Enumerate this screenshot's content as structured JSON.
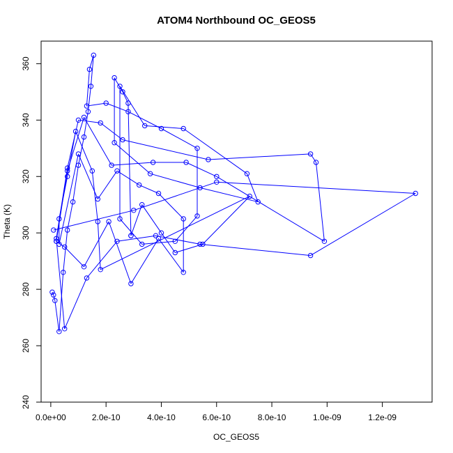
{
  "chart_data": {
    "type": "scatter",
    "title": "ATOM4 Northbound OC_GEOS5",
    "xlabel": "OC_GEOS5",
    "ylabel": "Theta (K)",
    "xlim": [
      -3.5e-11,
      1.38e-09
    ],
    "ylim": [
      240,
      368
    ],
    "x_ticks": [
      0,
      2e-10,
      4e-10,
      6e-10,
      8e-10,
      1e-09,
      1.2e-09
    ],
    "x_tick_labels": [
      "0.0e+00",
      "2.0e-10",
      "4.0e-10",
      "6.0e-10",
      "8.0e-10",
      "1.0e-09",
      "1.2e-09"
    ],
    "y_ticks": [
      240,
      260,
      280,
      300,
      320,
      340,
      360
    ],
    "y_tick_labels": [
      "240",
      "260",
      "280",
      "300",
      "320",
      "340",
      "360"
    ],
    "grid": false,
    "color": "#0000ff",
    "style": "points-connected-by-lines",
    "x": [
      5e-12,
      1e-11,
      1.5e-11,
      3e-11,
      4.5e-11,
      6e-11,
      8e-11,
      1e-10,
      1.2e-10,
      1.35e-10,
      1.45e-10,
      1.55e-10,
      1.4e-10,
      1.3e-10,
      2e-10,
      2.8e-10,
      4e-10,
      5.3e-10,
      5.3e-10,
      4.5e-10,
      3.3e-10,
      2.5e-10,
      2.5e-10,
      3.4e-10,
      4.8e-10,
      7.1e-10,
      7.5e-10,
      5.4e-10,
      3.6e-10,
      2.3e-10,
      2.3e-10,
      2.6e-10,
      2.8e-10,
      2.9e-10,
      2.9e-10,
      3.3e-10,
      4e-10,
      4.5e-10,
      5.5e-10,
      7.2e-10,
      1.8e-10,
      1.7e-10,
      1.5e-10,
      9e-11,
      6e-11,
      3e-11,
      3e-11,
      1e-10,
      1.7e-10,
      2.4e-10,
      3.2e-10,
      3.9e-10,
      4.8e-10,
      4.8e-10,
      3.9e-10,
      2.9e-10,
      2.1e-10,
      1.2e-10,
      5e-11,
      2e-11,
      2e-11,
      6e-11,
      1.2e-10,
      2.2e-10,
      3.7e-10,
      4.9e-10,
      6e-10,
      9.9e-10,
      9.6e-10,
      9.4e-10,
      5.7e-10,
      2.6e-10,
      1.8e-10,
      1e-10,
      6e-11,
      2e-11,
      5e-11,
      1.3e-10,
      2.4e-10,
      3.8e-10,
      5.4e-10,
      9.4e-10,
      1.32e-09,
      6e-10,
      3e-10,
      1e-11
    ],
    "y": [
      279,
      278,
      276,
      265,
      286,
      301,
      311,
      324,
      334,
      343,
      352,
      363,
      358,
      345,
      346,
      343,
      337,
      330,
      306,
      297,
      296,
      305,
      352,
      338,
      337,
      321,
      311,
      316,
      321,
      332,
      355,
      350,
      346,
      299,
      299,
      310,
      300,
      293,
      296,
      313,
      287,
      304,
      322,
      336,
      320,
      305,
      296,
      328,
      312,
      322,
      317,
      314,
      305,
      286,
      298,
      282,
      304,
      288,
      295,
      297,
      297,
      322,
      341,
      324,
      325,
      325,
      320,
      297,
      325,
      328,
      326,
      333,
      339,
      340,
      323,
      298,
      266,
      284,
      297,
      299,
      296,
      292,
      314,
      318,
      308,
      301
    ]
  }
}
